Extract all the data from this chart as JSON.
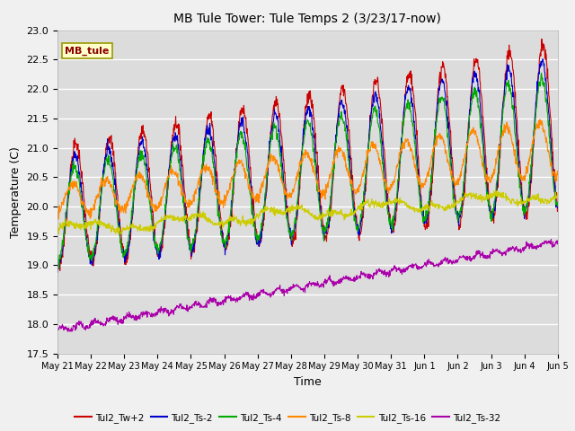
{
  "title": "MB Tule Tower: Tule Temps 2 (3/23/17-now)",
  "xlabel": "Time",
  "ylabel": "Temperature (C)",
  "ylim": [
    17.5,
    23.0
  ],
  "yticks": [
    17.5,
    18.0,
    18.5,
    19.0,
    19.5,
    20.0,
    20.5,
    21.0,
    21.5,
    22.0,
    22.5,
    23.0
  ],
  "fig_bg_color": "#f0f0f0",
  "plot_bg_color": "#dcdcdc",
  "legend_label": "MB_tule",
  "series_names": [
    "Tul2_Tw+2",
    "Tul2_Ts-2",
    "Tul2_Ts-4",
    "Tul2_Ts-8",
    "Tul2_Ts-16",
    "Tul2_Ts-32"
  ],
  "series_colors": [
    "#cc0000",
    "#0000cc",
    "#00aa00",
    "#ff8800",
    "#cccc00",
    "#aa00aa"
  ],
  "n_days": 15
}
